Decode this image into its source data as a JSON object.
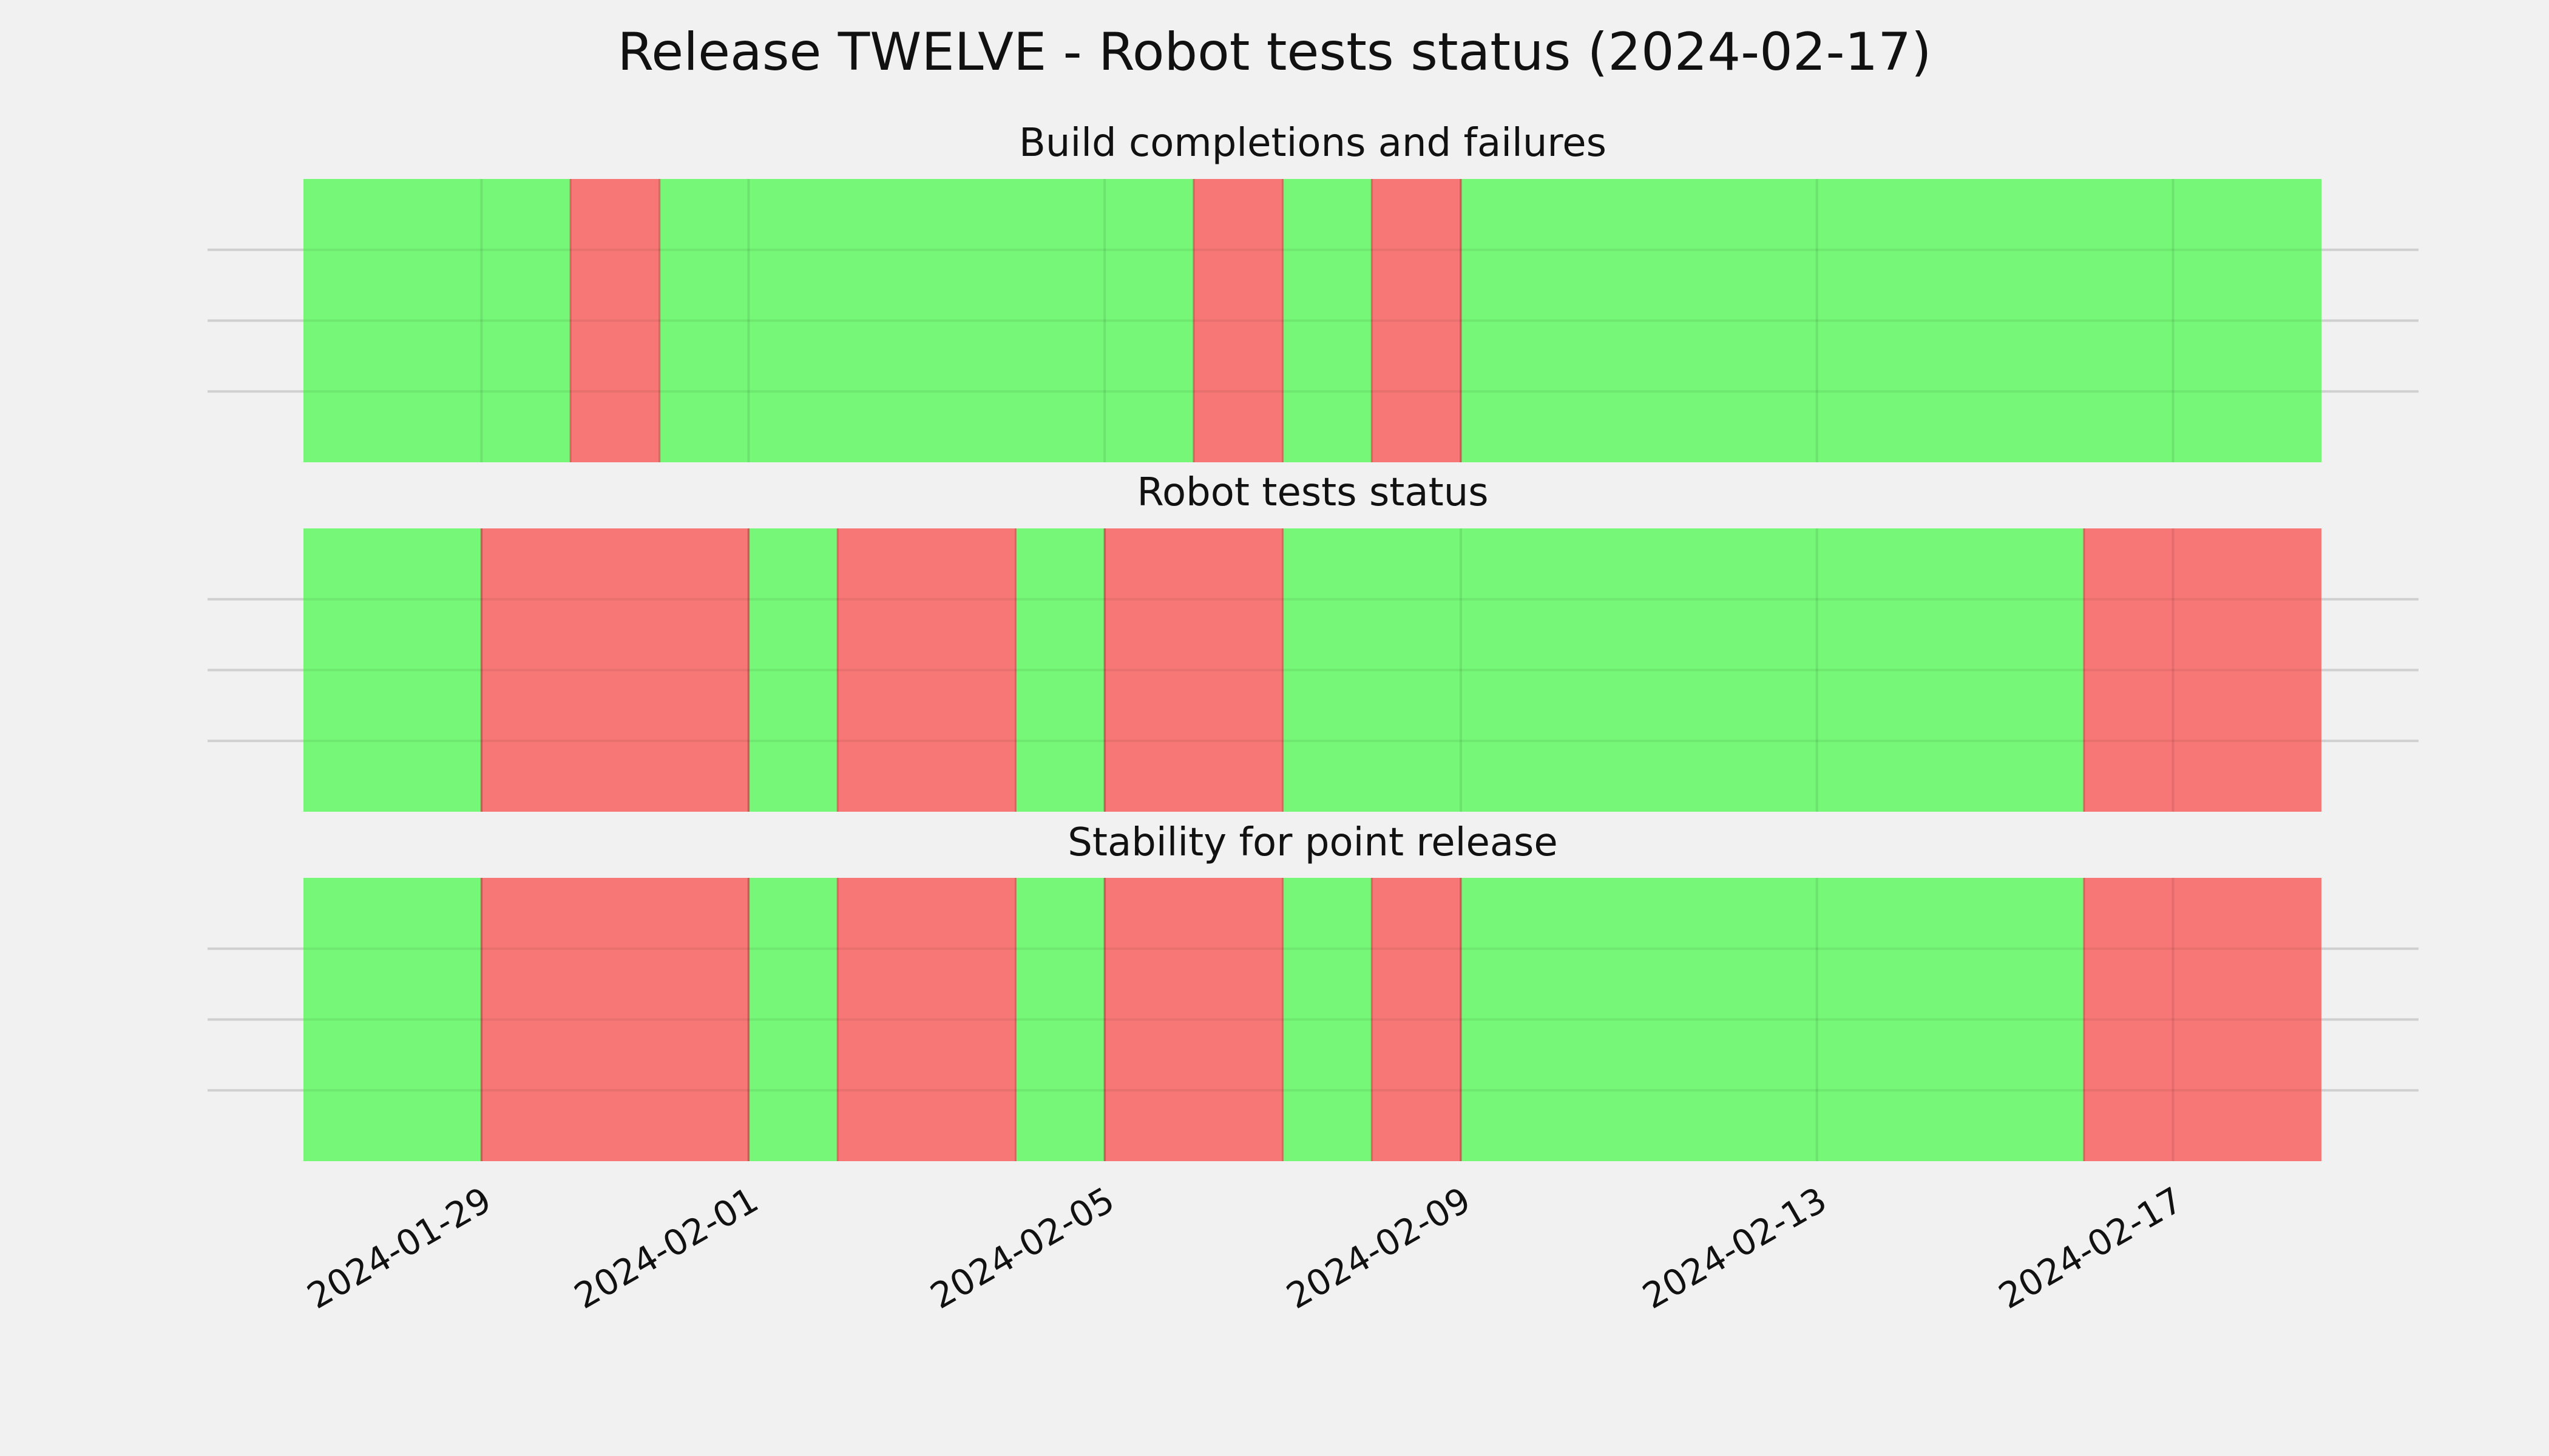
{
  "figure": {
    "title": "Release TWELVE - Robot tests status (2024-02-17)",
    "background": "#f1f1f1"
  },
  "colors": {
    "pass": "#76f778",
    "fail": "#f77776",
    "gridline": "#cfcfcf",
    "divider": "#60c860"
  },
  "chart_data": {
    "type": "timeline",
    "title": "Release TWELVE - Robot tests status (2024-02-17)",
    "x_range": [
      "2024-01-27",
      "2024-02-18 16:00"
    ],
    "x_ticks": [
      "2024-01-29",
      "2024-02-01",
      "2024-02-05",
      "2024-02-09",
      "2024-02-13",
      "2024-02-17"
    ],
    "grid": true,
    "panels": [
      {
        "title": "Build completions and failures",
        "segments": [
          {
            "start": "2024-01-27",
            "end": "2024-01-30",
            "status": "pass"
          },
          {
            "start": "2024-01-30",
            "end": "2024-01-31",
            "status": "fail"
          },
          {
            "start": "2024-01-31",
            "end": "2024-02-06",
            "status": "pass"
          },
          {
            "start": "2024-02-06",
            "end": "2024-02-07",
            "status": "fail"
          },
          {
            "start": "2024-02-07",
            "end": "2024-02-08",
            "status": "pass"
          },
          {
            "start": "2024-02-08",
            "end": "2024-02-09",
            "status": "fail"
          },
          {
            "start": "2024-02-09",
            "end": "2024-02-18 16:00",
            "status": "pass"
          }
        ]
      },
      {
        "title": "Robot tests status",
        "segments": [
          {
            "start": "2024-01-27",
            "end": "2024-01-29",
            "status": "pass"
          },
          {
            "start": "2024-01-29",
            "end": "2024-02-01",
            "status": "fail"
          },
          {
            "start": "2024-02-01",
            "end": "2024-02-02",
            "status": "pass"
          },
          {
            "start": "2024-02-02",
            "end": "2024-02-04",
            "status": "fail"
          },
          {
            "start": "2024-02-04",
            "end": "2024-02-05",
            "status": "pass"
          },
          {
            "start": "2024-02-05",
            "end": "2024-02-07",
            "status": "fail"
          },
          {
            "start": "2024-02-07",
            "end": "2024-02-16",
            "status": "pass"
          },
          {
            "start": "2024-02-16",
            "end": "2024-02-18 16:00",
            "status": "fail"
          }
        ]
      },
      {
        "title": "Stability for point release",
        "segments": [
          {
            "start": "2024-01-27",
            "end": "2024-01-29",
            "status": "pass"
          },
          {
            "start": "2024-01-29",
            "end": "2024-02-01",
            "status": "fail"
          },
          {
            "start": "2024-02-01",
            "end": "2024-02-02",
            "status": "pass"
          },
          {
            "start": "2024-02-02",
            "end": "2024-02-04",
            "status": "fail"
          },
          {
            "start": "2024-02-04",
            "end": "2024-02-05",
            "status": "pass"
          },
          {
            "start": "2024-02-05",
            "end": "2024-02-07",
            "status": "fail"
          },
          {
            "start": "2024-02-07",
            "end": "2024-02-08",
            "status": "pass"
          },
          {
            "start": "2024-02-08",
            "end": "2024-02-09",
            "status": "fail"
          },
          {
            "start": "2024-02-09",
            "end": "2024-02-16",
            "status": "pass"
          },
          {
            "start": "2024-02-16",
            "end": "2024-02-18 16:00",
            "status": "fail"
          }
        ]
      }
    ]
  }
}
